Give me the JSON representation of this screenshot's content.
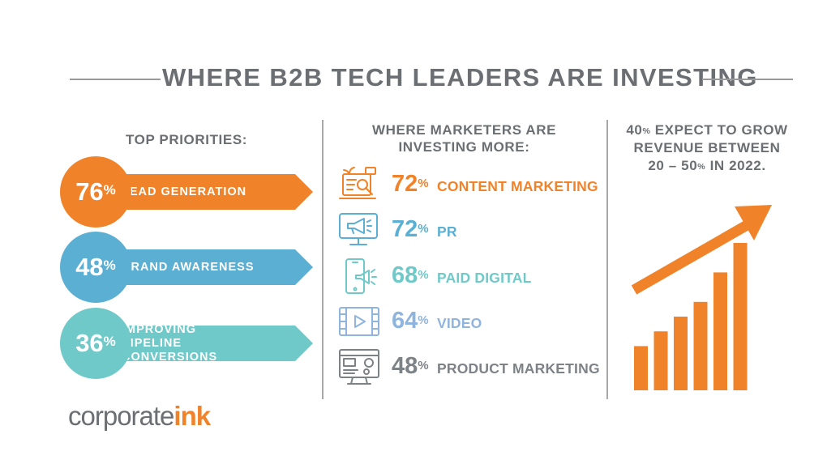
{
  "title": "WHERE B2B TECH LEADERS ARE INVESTING",
  "colors": {
    "orange": "#f0832a",
    "blue": "#5aafd3",
    "teal": "#6fc9c8",
    "light_blue": "#8fb4dd",
    "gray": "#7d8287",
    "bar": "#f0832a"
  },
  "priorities": {
    "heading": "TOP PRIORITIES:",
    "items": [
      {
        "value": "76",
        "unit": "%",
        "label": "LEAD GENERATION",
        "color": "#f0832a"
      },
      {
        "value": "48",
        "unit": "%",
        "label": "BRAND AWARENESS",
        "color": "#5aafd3"
      },
      {
        "value": "36",
        "unit": "%",
        "label": "IMPROVING PIPELINE CONVERSIONS",
        "color": "#6fc9c8"
      }
    ]
  },
  "investing": {
    "heading_line1": "WHERE MARKETERS ARE",
    "heading_line2": "INVESTING MORE:",
    "items": [
      {
        "value": "72",
        "unit": "%",
        "label": "CONTENT MARKETING",
        "color": "#f0832a",
        "icon": "content-marketing-icon"
      },
      {
        "value": "72",
        "unit": "%",
        "label": "PR",
        "color": "#5aafd3",
        "icon": "pr-megaphone-icon"
      },
      {
        "value": "68",
        "unit": "%",
        "label": "PAID DIGITAL",
        "color": "#6fc9c8",
        "icon": "paid-digital-phone-icon"
      },
      {
        "value": "64",
        "unit": "%",
        "label": "VIDEO",
        "color": "#8fb4dd",
        "icon": "video-play-icon"
      },
      {
        "value": "48",
        "unit": "%",
        "label": "PRODUCT MARKETING",
        "color": "#7d8287",
        "icon": "product-marketing-icon"
      }
    ]
  },
  "growth": {
    "line1_value": "40",
    "line1_unit": "%",
    "line1_text": " EXPECT TO GROW",
    "line2": "REVENUE BETWEEN",
    "line3_a": "20 – 50",
    "line3_unit": "%",
    "line3_b": " IN 2022."
  },
  "chart_data": [
    {
      "type": "bar",
      "categories": [
        "LEAD GENERATION",
        "BRAND AWARENESS",
        "IMPROVING PIPELINE CONVERSIONS"
      ],
      "values": [
        76,
        48,
        36
      ],
      "title": "TOP PRIORITIES:",
      "xlabel": "",
      "ylabel": "",
      "ylim": [
        0,
        100
      ]
    },
    {
      "type": "bar",
      "categories": [
        "CONTENT MARKETING",
        "PR",
        "PAID DIGITAL",
        "VIDEO",
        "PRODUCT MARKETING"
      ],
      "values": [
        72,
        72,
        68,
        64,
        48
      ],
      "title": "WHERE MARKETERS ARE INVESTING MORE:",
      "xlabel": "",
      "ylabel": "",
      "ylim": [
        0,
        100
      ]
    }
  ],
  "decor_bars": [
    3,
    4,
    5,
    6,
    8,
    10
  ],
  "logo": {
    "part1": "corporate",
    "part2": "ink"
  }
}
